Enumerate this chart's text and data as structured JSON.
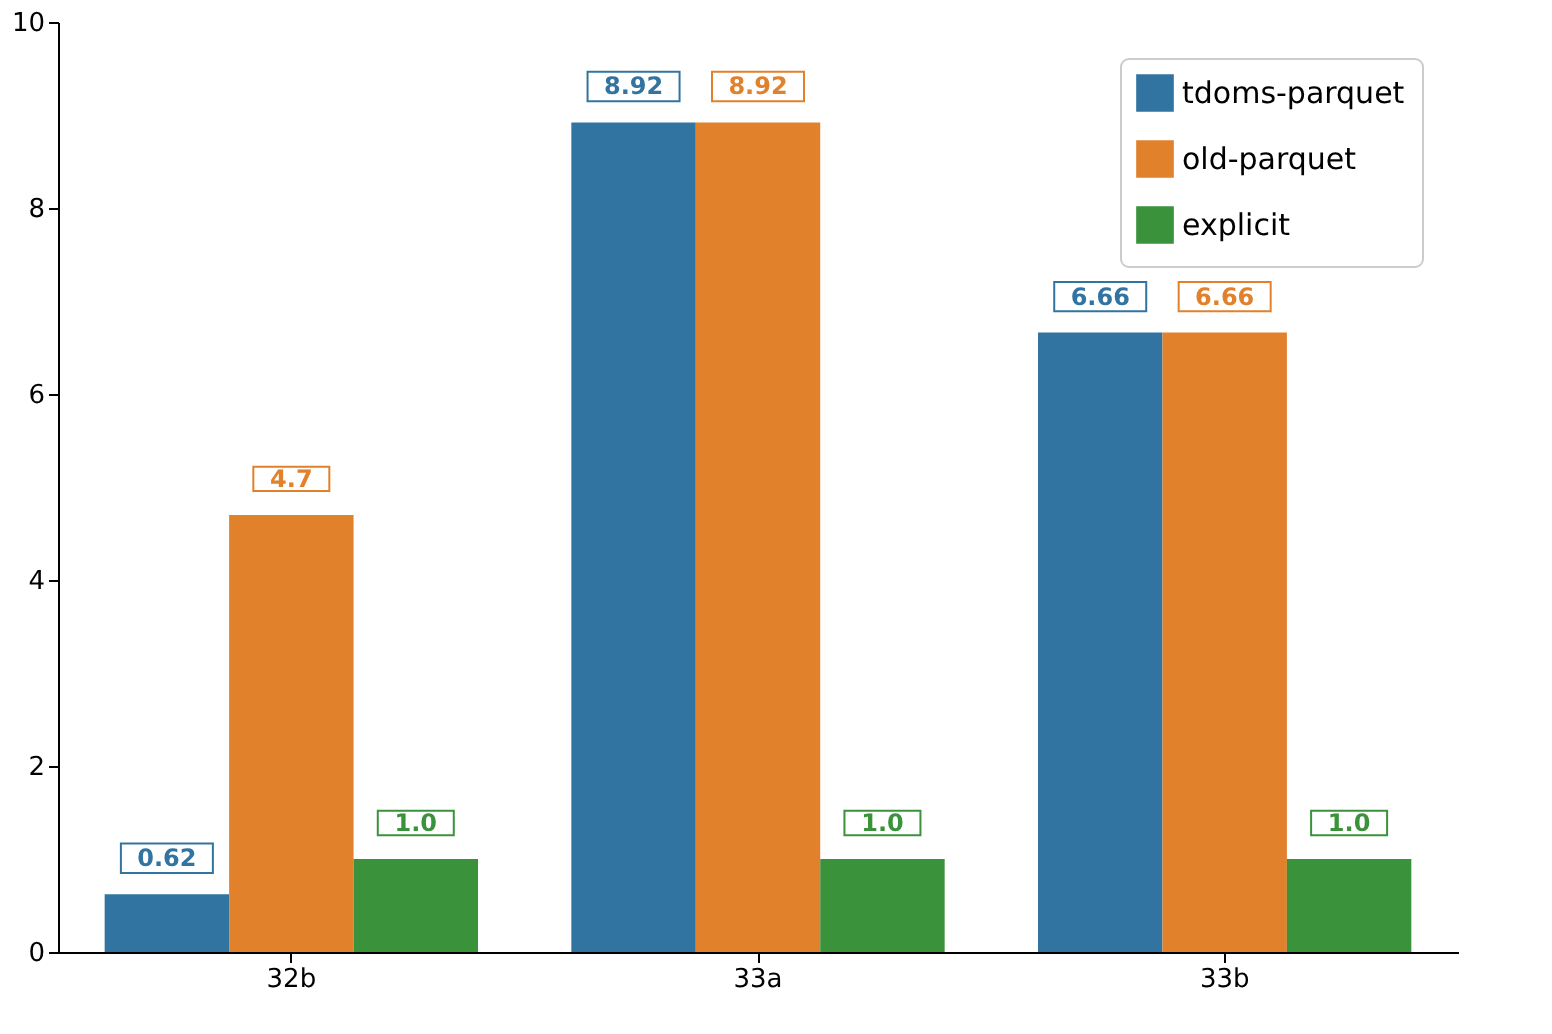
{
  "chart_data": {
    "type": "bar",
    "categories": [
      "32b",
      "33a",
      "33b"
    ],
    "series": [
      {
        "name": "tdoms-parquet",
        "color": "#3274a1",
        "values": [
          0.62,
          8.92,
          6.66
        ],
        "value_labels": [
          "0.62",
          "8.92",
          "6.66"
        ]
      },
      {
        "name": "old-parquet",
        "color": "#e1812c",
        "values": [
          4.7,
          8.92,
          6.66
        ],
        "value_labels": [
          "4.7",
          "8.92",
          "6.66"
        ]
      },
      {
        "name": "explicit",
        "color": "#3a923a",
        "values": [
          1.0,
          1.0,
          1.0
        ],
        "value_labels": [
          "1.0",
          "1.0",
          "1.0"
        ]
      }
    ],
    "ylim": [
      0,
      10
    ],
    "yticks": [
      0,
      2,
      4,
      6,
      8,
      10
    ],
    "grid": false,
    "legend": "top right"
  }
}
